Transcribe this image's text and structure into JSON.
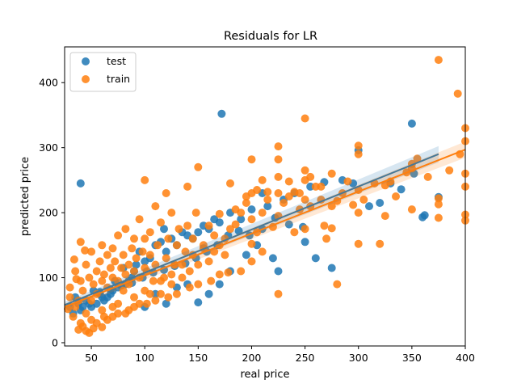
{
  "chart_data": {
    "type": "scatter",
    "title": "Residuals for LR",
    "xlabel": "real price",
    "ylabel": "predicted price",
    "xlim": [
      25,
      400
    ],
    "ylim": [
      -5,
      455
    ],
    "xticks": [
      50,
      100,
      150,
      200,
      250,
      300,
      350,
      400
    ],
    "yticks": [
      0,
      100,
      200,
      300,
      400
    ],
    "legend_position": "top-left",
    "series": [
      {
        "name": "test",
        "color": "#1f77b4",
        "fit": {
          "x": [
            25,
            375
          ],
          "y": [
            58,
            290
          ]
        },
        "points": [
          [
            40,
            245
          ],
          [
            172,
            352
          ],
          [
            350,
            337
          ],
          [
            362,
            196
          ],
          [
            300,
            296
          ],
          [
            268,
            247
          ],
          [
            255,
            240
          ],
          [
            230,
            220
          ],
          [
            215,
            210
          ],
          [
            240,
            230
          ],
          [
            210,
            230
          ],
          [
            200,
            205
          ],
          [
            190,
            190
          ],
          [
            180,
            200
          ],
          [
            170,
            185
          ],
          [
            165,
            190
          ],
          [
            160,
            175
          ],
          [
            155,
            180
          ],
          [
            150,
            170
          ],
          [
            145,
            160
          ],
          [
            140,
            165
          ],
          [
            135,
            170
          ],
          [
            130,
            150
          ],
          [
            125,
            160
          ],
          [
            120,
            140
          ],
          [
            118,
            175
          ],
          [
            115,
            155
          ],
          [
            110,
            150
          ],
          [
            105,
            130
          ],
          [
            100,
            125
          ],
          [
            95,
            140
          ],
          [
            92,
            120
          ],
          [
            90,
            110
          ],
          [
            88,
            100
          ],
          [
            85,
            95
          ],
          [
            82,
            90
          ],
          [
            80,
            115
          ],
          [
            75,
            85
          ],
          [
            72,
            95
          ],
          [
            70,
            80
          ],
          [
            68,
            75
          ],
          [
            65,
            70
          ],
          [
            62,
            65
          ],
          [
            60,
            70
          ],
          [
            58,
            75
          ],
          [
            55,
            60
          ],
          [
            52,
            80
          ],
          [
            50,
            55
          ],
          [
            48,
            60
          ],
          [
            45,
            65
          ],
          [
            42,
            55
          ],
          [
            40,
            50
          ],
          [
            38,
            60
          ],
          [
            35,
            70
          ],
          [
            33,
            45
          ],
          [
            30,
            55
          ],
          [
            100,
            55
          ],
          [
            150,
            62
          ],
          [
            160,
            75
          ],
          [
            120,
            60
          ],
          [
            110,
            75
          ],
          [
            130,
            85
          ],
          [
            140,
            90
          ],
          [
            170,
            90
          ],
          [
            180,
            110
          ],
          [
            195,
            135
          ],
          [
            205,
            150
          ],
          [
            220,
            130
          ],
          [
            225,
            110
          ],
          [
            250,
            155
          ],
          [
            260,
            130
          ],
          [
            275,
            115
          ],
          [
            285,
            250
          ],
          [
            295,
            245
          ],
          [
            310,
            210
          ],
          [
            320,
            215
          ],
          [
            330,
            245
          ],
          [
            340,
            236
          ],
          [
            352,
            260
          ],
          [
            360,
            193
          ],
          [
            375,
            224
          ],
          [
            248,
            178
          ],
          [
            235,
            182
          ],
          [
            222,
            192
          ],
          [
            210,
            175
          ],
          [
            198,
            165
          ],
          [
            188,
            172
          ],
          [
            178,
            165
          ],
          [
            168,
            150
          ],
          [
            158,
            140
          ],
          [
            148,
            130
          ],
          [
            138,
            122
          ],
          [
            128,
            118
          ],
          [
            118,
            112
          ],
          [
            108,
            108
          ],
          [
            98,
            100
          ],
          [
            88,
            92
          ],
          [
            78,
            88
          ],
          [
            68,
            82
          ],
          [
            58,
            78
          ]
        ]
      },
      {
        "name": "train",
        "color": "#ff7f0e",
        "fit": {
          "x": [
            25,
            400
          ],
          "y": [
            55,
            297
          ]
        },
        "points": [
          [
            375,
            435
          ],
          [
            393,
            383
          ],
          [
            400,
            330
          ],
          [
            400,
            310
          ],
          [
            400,
            260
          ],
          [
            400,
            240
          ],
          [
            400,
            197
          ],
          [
            400,
            188
          ],
          [
            375,
            222
          ],
          [
            375,
            213
          ],
          [
            375,
            192
          ],
          [
            350,
            275
          ],
          [
            350,
            268
          ],
          [
            350,
            205
          ],
          [
            330,
            248
          ],
          [
            325,
            242
          ],
          [
            325,
            195
          ],
          [
            320,
            152
          ],
          [
            300,
            303
          ],
          [
            300,
            290
          ],
          [
            300,
            235
          ],
          [
            300,
            200
          ],
          [
            300,
            152
          ],
          [
            290,
            248
          ],
          [
            280,
            218
          ],
          [
            275,
            260
          ],
          [
            275,
            210
          ],
          [
            275,
            176
          ],
          [
            270,
            160
          ],
          [
            265,
            220
          ],
          [
            260,
            240
          ],
          [
            255,
            210
          ],
          [
            250,
            345
          ],
          [
            250,
            265
          ],
          [
            250,
            250
          ],
          [
            250,
            220
          ],
          [
            250,
            175
          ],
          [
            245,
            205
          ],
          [
            240,
            232
          ],
          [
            235,
            248
          ],
          [
            230,
            215
          ],
          [
            225,
            302
          ],
          [
            225,
            282
          ],
          [
            225,
            255
          ],
          [
            225,
            230
          ],
          [
            225,
            195
          ],
          [
            220,
            178
          ],
          [
            215,
            220
          ],
          [
            210,
            250
          ],
          [
            210,
            200
          ],
          [
            205,
            170
          ],
          [
            200,
            282
          ],
          [
            200,
            230
          ],
          [
            200,
            190
          ],
          [
            200,
            152
          ],
          [
            195,
            215
          ],
          [
            190,
            200
          ],
          [
            185,
            182
          ],
          [
            180,
            245
          ],
          [
            180,
            175
          ],
          [
            175,
            160
          ],
          [
            175,
            135
          ],
          [
            170,
            198
          ],
          [
            170,
            150
          ],
          [
            165,
            140
          ],
          [
            160,
            180
          ],
          [
            160,
            125
          ],
          [
            155,
            150
          ],
          [
            150,
            270
          ],
          [
            150,
            120
          ],
          [
            148,
            200
          ],
          [
            145,
            160
          ],
          [
            142,
            110
          ],
          [
            140,
            240
          ],
          [
            140,
            180
          ],
          [
            138,
            140
          ],
          [
            135,
            100
          ],
          [
            132,
            175
          ],
          [
            130,
            150
          ],
          [
            128,
            120
          ],
          [
            125,
            200
          ],
          [
            125,
            90
          ],
          [
            122,
            160
          ],
          [
            120,
            230
          ],
          [
            120,
            130
          ],
          [
            118,
            100
          ],
          [
            115,
            185
          ],
          [
            115,
            75
          ],
          [
            112,
            150
          ],
          [
            110,
            210
          ],
          [
            110,
            120
          ],
          [
            108,
            95
          ],
          [
            105,
            170
          ],
          [
            105,
            135
          ],
          [
            102,
            110
          ],
          [
            100,
            250
          ],
          [
            100,
            160
          ],
          [
            100,
            115
          ],
          [
            100,
            80
          ],
          [
            98,
            140
          ],
          [
            95,
            190
          ],
          [
            95,
            100
          ],
          [
            92,
            130
          ],
          [
            90,
            160
          ],
          [
            90,
            110
          ],
          [
            90,
            70
          ],
          [
            88,
            145
          ],
          [
            85,
            120
          ],
          [
            85,
            90
          ],
          [
            82,
            175
          ],
          [
            82,
            105
          ],
          [
            80,
            135
          ],
          [
            80,
            80
          ],
          [
            78,
            115
          ],
          [
            75,
            165
          ],
          [
            75,
            95
          ],
          [
            75,
            60
          ],
          [
            72,
            125
          ],
          [
            70,
            145
          ],
          [
            70,
            100
          ],
          [
            70,
            55
          ],
          [
            68,
            115
          ],
          [
            65,
            135
          ],
          [
            65,
            85
          ],
          [
            62,
            105
          ],
          [
            60,
            150
          ],
          [
            60,
            95
          ],
          [
            60,
            50
          ],
          [
            58,
            125
          ],
          [
            55,
            75
          ],
          [
            55,
            110
          ],
          [
            52,
            90
          ],
          [
            50,
            140
          ],
          [
            50,
            65
          ],
          [
            48,
            100
          ],
          [
            45,
            120
          ],
          [
            45,
            45
          ],
          [
            42,
            80
          ],
          [
            40,
            155
          ],
          [
            40,
            95
          ],
          [
            40,
            30
          ],
          [
            38,
            65
          ],
          [
            35,
            110
          ],
          [
            35,
            55
          ],
          [
            33,
            40
          ],
          [
            30,
            85
          ],
          [
            30,
            70
          ],
          [
            28,
            52
          ],
          [
            45,
            18
          ],
          [
            55,
            30
          ],
          [
            65,
            35
          ],
          [
            60,
            24
          ],
          [
            75,
            45
          ],
          [
            85,
            50
          ],
          [
            95,
            60
          ],
          [
            105,
            75
          ],
          [
            115,
            95
          ],
          [
            125,
            105
          ],
          [
            135,
            120
          ],
          [
            145,
            135
          ],
          [
            155,
            145
          ],
          [
            165,
            165
          ],
          [
            185,
            205
          ],
          [
            195,
            225
          ],
          [
            205,
            235
          ],
          [
            215,
            232
          ],
          [
            235,
            225
          ],
          [
            245,
            230
          ],
          [
            255,
            255
          ],
          [
            265,
            240
          ],
          [
            285,
            230
          ],
          [
            295,
            212
          ],
          [
            305,
            220
          ],
          [
            315,
            245
          ],
          [
            335,
            225
          ],
          [
            345,
            262
          ],
          [
            355,
            283
          ],
          [
            365,
            255
          ],
          [
            385,
            265
          ],
          [
            395,
            290
          ],
          [
            280,
            90
          ],
          [
            268,
            180
          ],
          [
            240,
            170
          ],
          [
            210,
            140
          ],
          [
            190,
            110
          ],
          [
            170,
            105
          ],
          [
            150,
            90
          ],
          [
            130,
            75
          ],
          [
            110,
            65
          ],
          [
            90,
            55
          ],
          [
            70,
            40
          ],
          [
            50,
            35
          ],
          [
            42,
            25
          ],
          [
            38,
            20
          ],
          [
            48,
            15
          ],
          [
            52,
            22
          ],
          [
            225,
            75
          ],
          [
            200,
            125
          ],
          [
            178,
            108
          ],
          [
            162,
            95
          ],
          [
            142,
            85
          ],
          [
            122,
            70
          ],
          [
            102,
            60
          ],
          [
            82,
            45
          ],
          [
            62,
            40
          ],
          [
            36,
            98
          ],
          [
            34,
            128
          ],
          [
            44,
            142
          ]
        ]
      }
    ]
  }
}
